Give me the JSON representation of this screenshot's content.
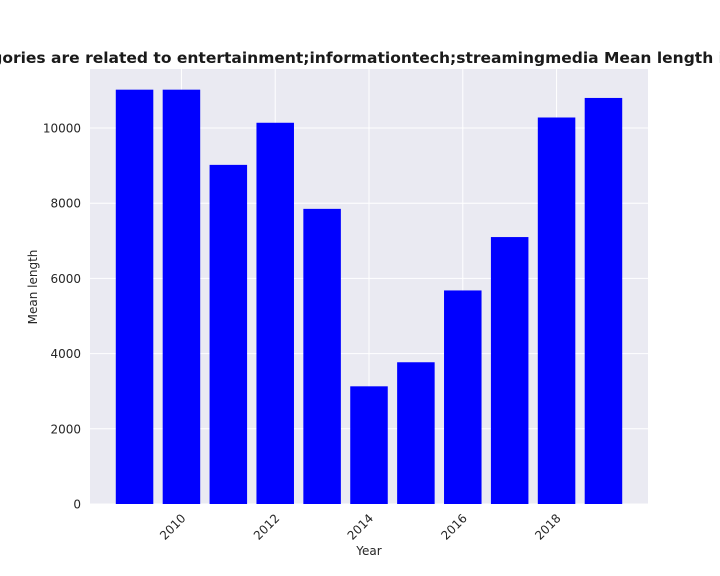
{
  "chart_data": {
    "type": "bar",
    "title": "Apps whose categories are related to entertainment;informationtech;streamingmedia Mean length in privacy policies",
    "xlabel": "Year",
    "ylabel": "Mean length",
    "x": [
      2009,
      2010,
      2011,
      2012,
      2013,
      2014,
      2015,
      2016,
      2017,
      2018,
      2019
    ],
    "values": [
      11020,
      11020,
      9020,
      10140,
      7850,
      3130,
      3770,
      5680,
      7100,
      10280,
      10800
    ],
    "bar_color": "#0000ff",
    "background_color": "#eaeaf2",
    "grid": true,
    "grid_color": "#ffffff",
    "xlim": [
      2008.05,
      2019.95
    ],
    "ylim": [
      0,
      11570
    ],
    "xticks": [
      2010,
      2012,
      2014,
      2016,
      2018
    ],
    "yticks": [
      0,
      2000,
      4000,
      6000,
      8000,
      10000
    ]
  }
}
